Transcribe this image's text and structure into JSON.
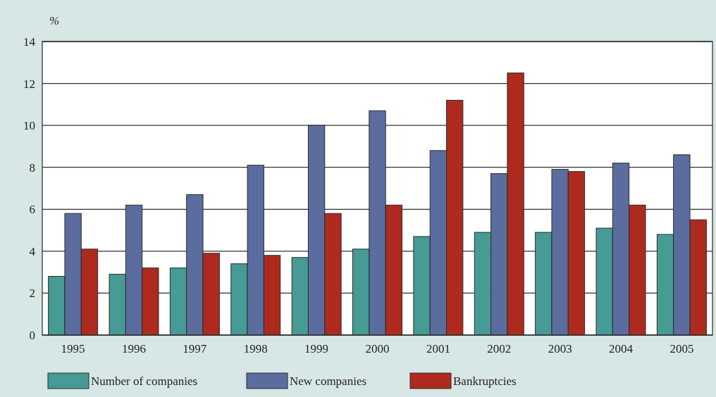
{
  "chart_data": {
    "type": "bar",
    "ylabel": "%",
    "categories": [
      "1995",
      "1996",
      "1997",
      "1998",
      "1999",
      "2000",
      "2001",
      "2002",
      "2003",
      "2004",
      "2005"
    ],
    "series": [
      {
        "name": "Number of companies",
        "color": "#469b94",
        "values": [
          2.8,
          2.9,
          3.2,
          3.4,
          3.7,
          4.1,
          4.7,
          4.9,
          4.9,
          5.1,
          4.8
        ]
      },
      {
        "name": "New companies",
        "color": "#5b6d9f",
        "values": [
          5.8,
          6.2,
          6.7,
          8.1,
          10,
          10.7,
          8.8,
          7.7,
          7.9,
          8.2,
          8.6
        ]
      },
      {
        "name": "Bankruptcies",
        "color": "#ae2a1e",
        "values": [
          4.1,
          3.2,
          3.9,
          3.8,
          5.8,
          6.2,
          11.2,
          12.5,
          7.8,
          6.2,
          5.5
        ]
      }
    ],
    "ylim": [
      0,
      14
    ],
    "yticks": [
      0,
      2,
      4,
      6,
      8,
      10,
      12,
      14
    ],
    "grid": "y",
    "legend": "bottom"
  }
}
